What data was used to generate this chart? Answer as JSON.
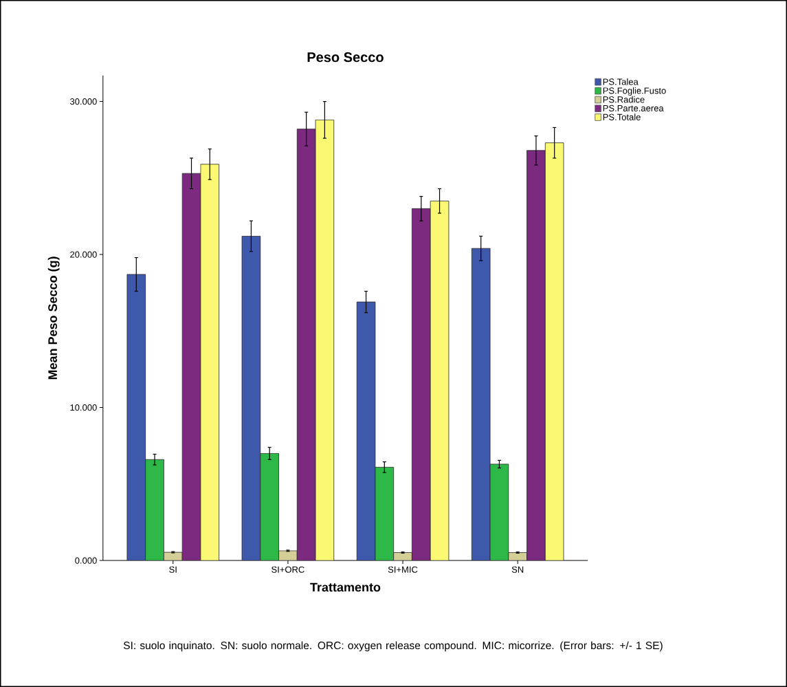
{
  "chart_data": {
    "type": "bar",
    "title": "Peso Secco",
    "xlabel": "Trattamento",
    "ylabel": "Mean Peso Secco (g)",
    "categories": [
      "SI",
      "SI+ORC",
      "SI+MIC",
      "SN"
    ],
    "series": [
      {
        "name": "PS.Talea",
        "color": "#3e58ac",
        "values": [
          18.7,
          21.2,
          16.9,
          20.4
        ],
        "errors": [
          1.1,
          1.0,
          0.7,
          0.8
        ]
      },
      {
        "name": "PS.Foglie.Fusto",
        "color": "#2eb848",
        "values": [
          6.6,
          7.0,
          6.1,
          6.3
        ],
        "errors": [
          0.35,
          0.4,
          0.35,
          0.25
        ]
      },
      {
        "name": "PS.Radice",
        "color": "#d4cf97",
        "values": [
          0.54,
          0.64,
          0.52,
          0.52
        ],
        "errors": [
          0.04,
          0.04,
          0.04,
          0.04
        ]
      },
      {
        "name": "PS.Parte.aerea",
        "color": "#7b2a80",
        "values": [
          25.3,
          28.2,
          23.0,
          26.8
        ],
        "errors": [
          1.0,
          1.1,
          0.8,
          0.95
        ]
      },
      {
        "name": "PS.Totale",
        "color": "#fbf873",
        "values": [
          25.9,
          28.8,
          23.5,
          27.3
        ],
        "errors": [
          1.0,
          1.2,
          0.8,
          1.0
        ]
      }
    ],
    "ylim": [
      0,
      31.7
    ],
    "yticks": [
      {
        "value": 0,
        "label": "0.000"
      },
      {
        "value": 10,
        "label": "10.000"
      },
      {
        "value": 20,
        "label": "20.000"
      },
      {
        "value": 30,
        "label": "30.000"
      }
    ],
    "legend": "top right",
    "grid": false,
    "annotations": [
      "SI: suolo inquinato. SN: suolo normale. ORC: oxygen release compound. MIC: micorrize. (Error bars: +/- 1 SE)"
    ]
  }
}
